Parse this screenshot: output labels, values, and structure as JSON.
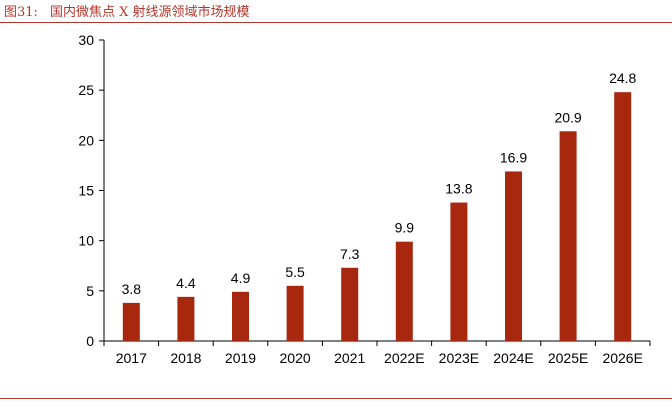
{
  "figure": {
    "number": "图31:",
    "title": "国内微焦点 X 射线源领域市场规模"
  },
  "colors": {
    "bar": "#a8270f",
    "accent": "#b5352a",
    "axis": "#000000"
  },
  "chart_data": {
    "type": "bar",
    "title": "",
    "xlabel": "",
    "ylabel": "",
    "ylim": [
      0,
      30
    ],
    "yticks": [
      0,
      5,
      10,
      15,
      20,
      25,
      30
    ],
    "grid": false,
    "legend": "none",
    "categories": [
      "2017",
      "2018",
      "2019",
      "2020",
      "2021",
      "2022E",
      "2023E",
      "2024E",
      "2025E",
      "2026E"
    ],
    "values": [
      3.8,
      4.4,
      4.9,
      5.5,
      7.3,
      9.9,
      13.8,
      16.9,
      20.9,
      24.8
    ],
    "data_labels": [
      "3.8",
      "4.4",
      "4.9",
      "5.5",
      "7.3",
      "9.9",
      "13.8",
      "16.9",
      "20.9",
      "24.8"
    ]
  }
}
